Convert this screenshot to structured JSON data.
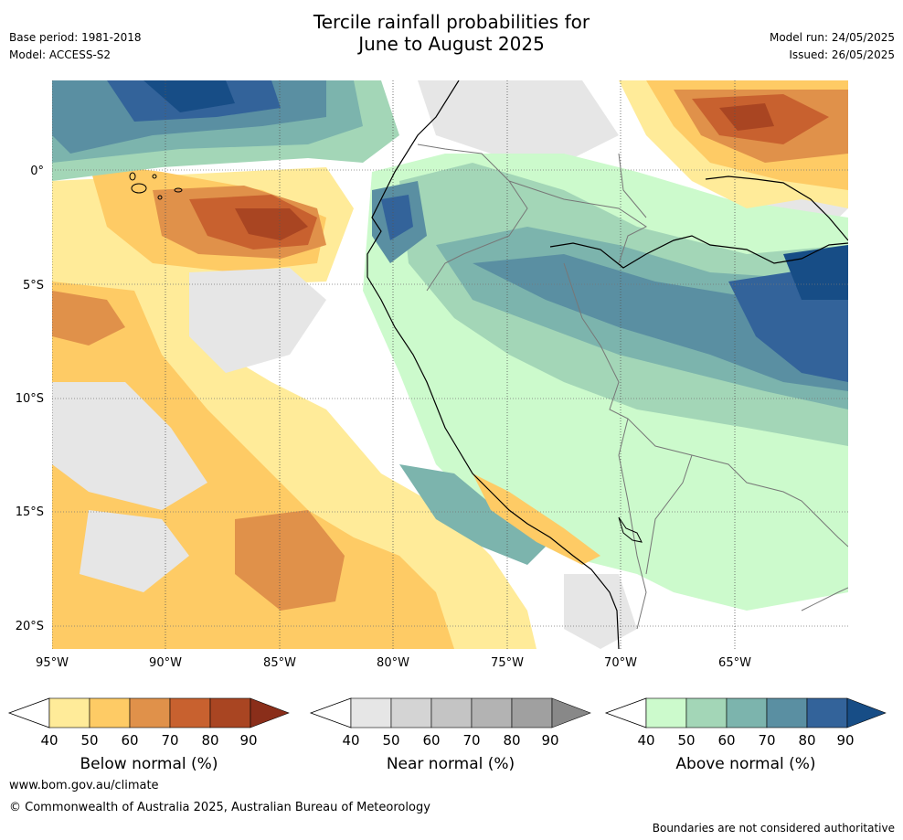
{
  "header": {
    "title_line1": "Tercile rainfall probabilities for",
    "title_line2": "June to August 2025",
    "base_period": "Base period: 1981-2018",
    "model": "Model: ACCESS-S2",
    "model_run": "Model run: 24/05/2025",
    "issued": "Issued: 26/05/2025"
  },
  "map": {
    "region": "Western South America",
    "lat_labels": [
      "0°",
      "5°S",
      "10°S",
      "15°S",
      "20°S"
    ],
    "lon_labels": [
      "95°W",
      "90°W",
      "85°W",
      "80°W",
      "75°W",
      "70°W",
      "65°W"
    ]
  },
  "colorbars": [
    {
      "label": "Below normal (%)",
      "ticks": [
        "40",
        "50",
        "60",
        "70",
        "80",
        "90"
      ],
      "colors": [
        "#ffeb99",
        "#fecb65",
        "#e0914a",
        "#c8612f",
        "#a94522",
        "#8a2e1a"
      ]
    },
    {
      "label": "Near normal (%)",
      "ticks": [
        "40",
        "50",
        "60",
        "70",
        "80",
        "90"
      ],
      "colors": [
        "#e6e6e6",
        "#d4d4d4",
        "#c4c4c4",
        "#b3b3b3",
        "#a0a0a0",
        "#888888"
      ]
    },
    {
      "label": "Above normal (%)",
      "ticks": [
        "40",
        "50",
        "60",
        "70",
        "80",
        "90"
      ],
      "colors": [
        "#ccfacc",
        "#a3d6b7",
        "#7cb4ad",
        "#5a8fa2",
        "#33639a",
        "#174d86"
      ]
    }
  ],
  "footer": {
    "website": "www.bom.gov.au/climate",
    "copyright": "© Commonwealth of Australia 2025, Australian Bureau of Meteorology",
    "disclaimer": "Boundaries are not considered authoritative"
  }
}
